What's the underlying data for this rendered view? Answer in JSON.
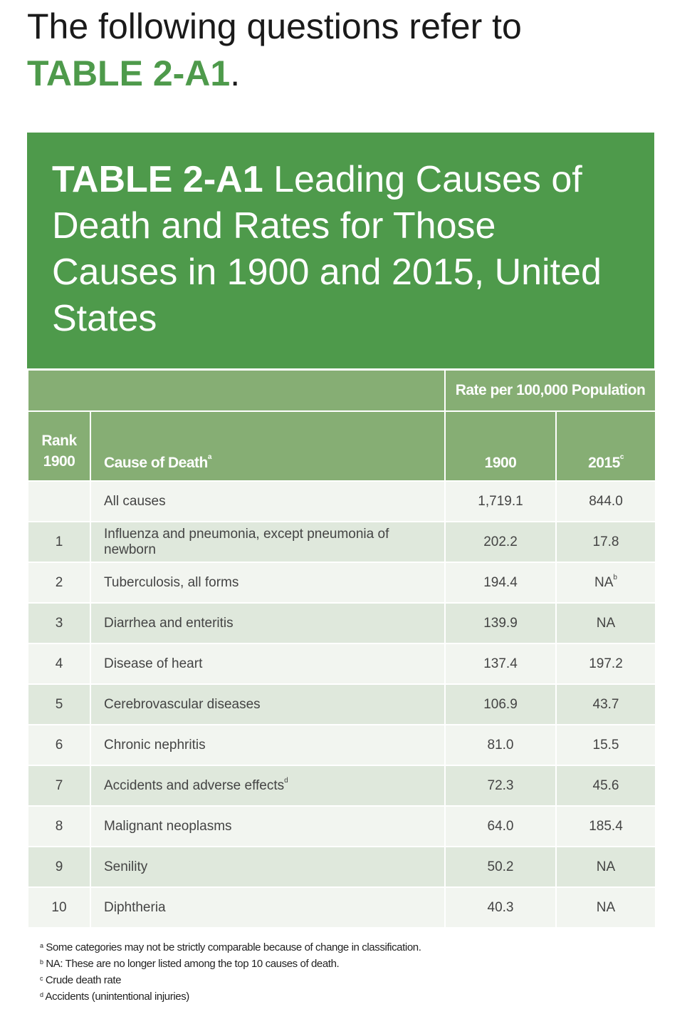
{
  "heading": {
    "prefix": "The following questions refer to",
    "table_ref": "TABLE 2-A1",
    "suffix": "."
  },
  "table": {
    "label": "TABLE 2-A1",
    "title": " Leading Causes of Death and Rates for Those Causes in 1900 and 2015, United States",
    "group_header": "Rate per 100,000 Population",
    "columns": {
      "rank_line1": "Rank",
      "rank_line2": "1900",
      "cause": "Cause of Death",
      "cause_note": "a",
      "y1900": "1900",
      "y2015": "2015",
      "y2015_note": "c"
    },
    "rows": [
      {
        "rank": "",
        "cause": "All causes",
        "cause_note": "",
        "r1900": "1,719.1",
        "r2015": "844.0",
        "r2015_note": ""
      },
      {
        "rank": "1",
        "cause": "Influenza and pneumonia, except pneumonia of newborn",
        "cause_note": "",
        "r1900": "202.2",
        "r2015": "17.8",
        "r2015_note": ""
      },
      {
        "rank": "2",
        "cause": "Tuberculosis, all forms",
        "cause_note": "",
        "r1900": "194.4",
        "r2015": "NA",
        "r2015_note": "b"
      },
      {
        "rank": "3",
        "cause": "Diarrhea and enteritis",
        "cause_note": "",
        "r1900": "139.9",
        "r2015": "NA",
        "r2015_note": ""
      },
      {
        "rank": "4",
        "cause": "Disease of heart",
        "cause_note": "",
        "r1900": "137.4",
        "r2015": "197.2",
        "r2015_note": ""
      },
      {
        "rank": "5",
        "cause": "Cerebrovascular diseases",
        "cause_note": "",
        "r1900": "106.9",
        "r2015": "43.7",
        "r2015_note": ""
      },
      {
        "rank": "6",
        "cause": "Chronic nephritis",
        "cause_note": "",
        "r1900": "81.0",
        "r2015": "15.5",
        "r2015_note": ""
      },
      {
        "rank": "7",
        "cause": "Accidents and adverse effects",
        "cause_note": "d",
        "r1900": "72.3",
        "r2015": "45.6",
        "r2015_note": ""
      },
      {
        "rank": "8",
        "cause": "Malignant neoplasms",
        "cause_note": "",
        "r1900": "64.0",
        "r2015": "185.4",
        "r2015_note": ""
      },
      {
        "rank": "9",
        "cause": "Senility",
        "cause_note": "",
        "r1900": "50.2",
        "r2015": "NA",
        "r2015_note": ""
      },
      {
        "rank": "10",
        "cause": "Diphtheria",
        "cause_note": "",
        "r1900": "40.3",
        "r2015": "NA",
        "r2015_note": ""
      }
    ]
  },
  "footnotes": [
    {
      "mark": "a",
      "text": " Some categories may not be strictly comparable because of change in classification."
    },
    {
      "mark": "b",
      "text": " NA: These are no longer listed among the top 10 causes of death."
    },
    {
      "mark": "c",
      "text": " Crude death rate"
    },
    {
      "mark": "d",
      "text": " Accidents (unintentional injuries)"
    }
  ],
  "colors": {
    "green": "#4e9a4b",
    "header_green": "#86ae74",
    "row_light": "#f2f5f0",
    "row_tint": "#dfe8dc"
  }
}
